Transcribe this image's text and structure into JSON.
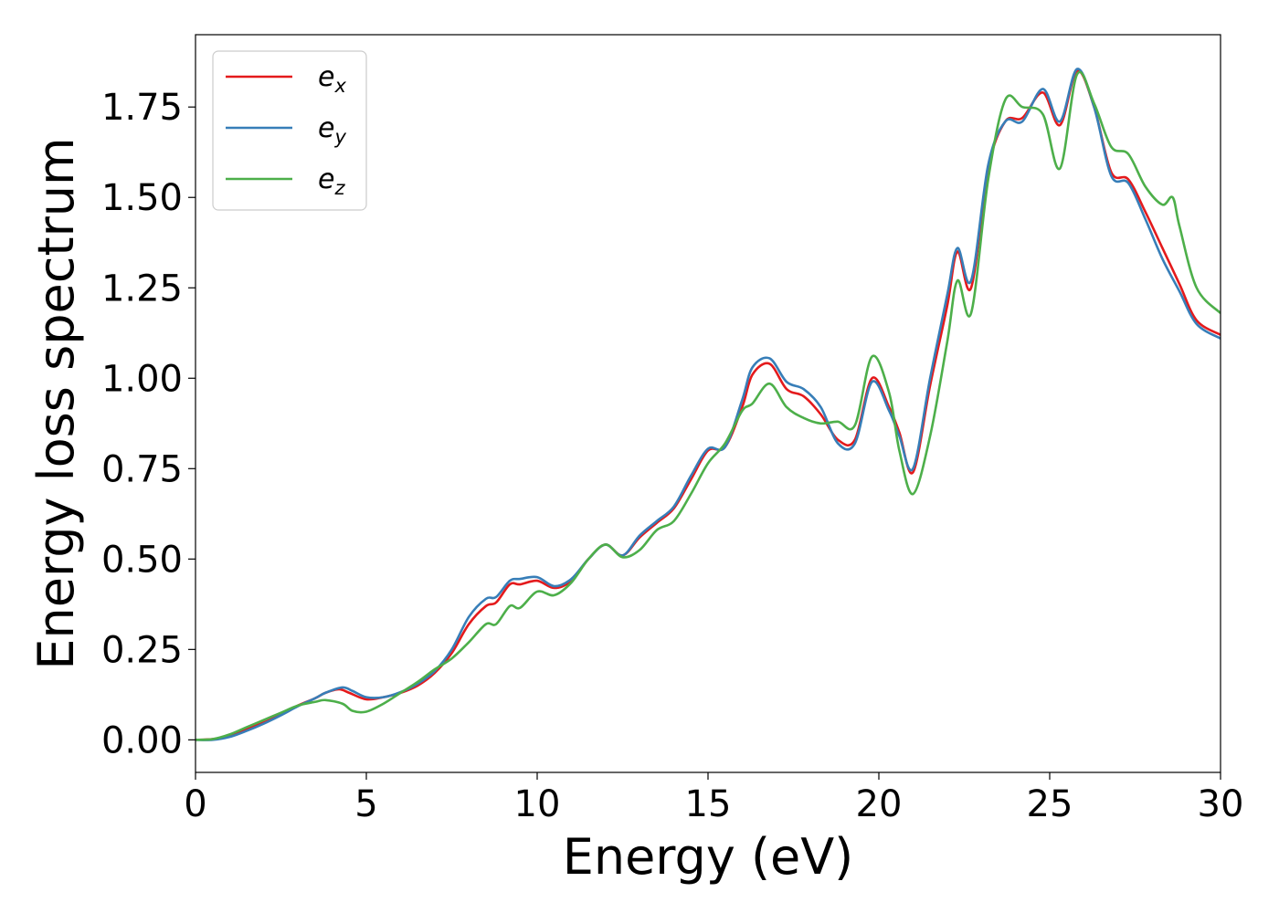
{
  "chart_data": {
    "type": "line",
    "title": "",
    "xlabel": "Energy (eV)",
    "ylabel": "Energy loss spectrum",
    "xlim": [
      0,
      30
    ],
    "ylim": [
      -0.09,
      1.95
    ],
    "xticks": [
      0,
      5,
      10,
      15,
      20,
      25,
      30
    ],
    "yticks": [
      0.0,
      0.25,
      0.5,
      0.75,
      1.0,
      1.25,
      1.5,
      1.75
    ],
    "xtick_labels": [
      "0",
      "5",
      "10",
      "15",
      "20",
      "25",
      "30"
    ],
    "ytick_labels": [
      "0.00",
      "0.25",
      "0.50",
      "0.75",
      "1.00",
      "1.25",
      "1.50",
      "1.75"
    ],
    "grid": false,
    "legend": "top-left",
    "series": [
      {
        "name": "e_x",
        "legend_base": "e",
        "legend_sub": "x",
        "color": "#e41a1c",
        "points": [
          [
            0,
            0
          ],
          [
            0.5,
            0.002
          ],
          [
            1,
            0.01
          ],
          [
            1.5,
            0.03
          ],
          [
            2,
            0.048
          ],
          [
            2.5,
            0.07
          ],
          [
            3,
            0.095
          ],
          [
            3.5,
            0.115
          ],
          [
            3.8,
            0.13
          ],
          [
            4.2,
            0.14
          ],
          [
            4.5,
            0.13
          ],
          [
            5,
            0.112
          ],
          [
            5.5,
            0.118
          ],
          [
            6,
            0.13
          ],
          [
            6.5,
            0.15
          ],
          [
            7,
            0.185
          ],
          [
            7.5,
            0.24
          ],
          [
            8,
            0.32
          ],
          [
            8.5,
            0.37
          ],
          [
            8.8,
            0.38
          ],
          [
            9.2,
            0.43
          ],
          [
            9.5,
            0.43
          ],
          [
            10,
            0.44
          ],
          [
            10.5,
            0.42
          ],
          [
            11,
            0.44
          ],
          [
            11.5,
            0.5
          ],
          [
            12,
            0.54
          ],
          [
            12.5,
            0.51
          ],
          [
            13,
            0.56
          ],
          [
            13.5,
            0.6
          ],
          [
            14,
            0.64
          ],
          [
            14.5,
            0.72
          ],
          [
            15,
            0.8
          ],
          [
            15.5,
            0.81
          ],
          [
            16,
            0.92
          ],
          [
            16.3,
            1.01
          ],
          [
            16.8,
            1.04
          ],
          [
            17.3,
            0.97
          ],
          [
            17.8,
            0.95
          ],
          [
            18.3,
            0.9
          ],
          [
            18.8,
            0.83
          ],
          [
            19.3,
            0.83
          ],
          [
            19.8,
            1.0
          ],
          [
            20.3,
            0.92
          ],
          [
            20.6,
            0.85
          ],
          [
            21,
            0.74
          ],
          [
            21.5,
            0.98
          ],
          [
            22,
            1.2
          ],
          [
            22.3,
            1.35
          ],
          [
            22.7,
            1.25
          ],
          [
            23.2,
            1.58
          ],
          [
            23.7,
            1.71
          ],
          [
            24.2,
            1.72
          ],
          [
            24.8,
            1.79
          ],
          [
            25.3,
            1.7
          ],
          [
            25.8,
            1.85
          ],
          [
            26.3,
            1.75
          ],
          [
            26.8,
            1.57
          ],
          [
            27.3,
            1.55
          ],
          [
            27.8,
            1.46
          ],
          [
            28.3,
            1.36
          ],
          [
            28.8,
            1.26
          ],
          [
            29.3,
            1.16
          ],
          [
            30,
            1.12
          ]
        ]
      },
      {
        "name": "e_y",
        "legend_base": "e",
        "legend_sub": "y",
        "color": "#377eb8",
        "points": [
          [
            0,
            0
          ],
          [
            0.5,
            0.0
          ],
          [
            1,
            0.008
          ],
          [
            1.5,
            0.025
          ],
          [
            2,
            0.045
          ],
          [
            2.5,
            0.068
          ],
          [
            3,
            0.093
          ],
          [
            3.5,
            0.115
          ],
          [
            3.8,
            0.13
          ],
          [
            4.3,
            0.145
          ],
          [
            4.6,
            0.135
          ],
          [
            5,
            0.118
          ],
          [
            5.5,
            0.118
          ],
          [
            6,
            0.132
          ],
          [
            6.5,
            0.155
          ],
          [
            7,
            0.19
          ],
          [
            7.5,
            0.25
          ],
          [
            8,
            0.34
          ],
          [
            8.5,
            0.39
          ],
          [
            8.8,
            0.395
          ],
          [
            9.2,
            0.44
          ],
          [
            9.5,
            0.445
          ],
          [
            10,
            0.45
          ],
          [
            10.5,
            0.425
          ],
          [
            11,
            0.445
          ],
          [
            11.5,
            0.5
          ],
          [
            12,
            0.54
          ],
          [
            12.5,
            0.51
          ],
          [
            13,
            0.565
          ],
          [
            13.5,
            0.605
          ],
          [
            14,
            0.645
          ],
          [
            14.5,
            0.73
          ],
          [
            15,
            0.805
          ],
          [
            15.5,
            0.81
          ],
          [
            16,
            0.94
          ],
          [
            16.3,
            1.03
          ],
          [
            16.8,
            1.055
          ],
          [
            17.3,
            0.99
          ],
          [
            17.8,
            0.97
          ],
          [
            18.3,
            0.92
          ],
          [
            18.8,
            0.82
          ],
          [
            19.3,
            0.82
          ],
          [
            19.8,
            0.99
          ],
          [
            20.3,
            0.91
          ],
          [
            20.6,
            0.84
          ],
          [
            21,
            0.75
          ],
          [
            21.5,
            1.0
          ],
          [
            22,
            1.23
          ],
          [
            22.3,
            1.36
          ],
          [
            22.7,
            1.27
          ],
          [
            23.2,
            1.59
          ],
          [
            23.7,
            1.71
          ],
          [
            24.2,
            1.71
          ],
          [
            24.8,
            1.8
          ],
          [
            25.3,
            1.71
          ],
          [
            25.8,
            1.855
          ],
          [
            26.3,
            1.75
          ],
          [
            26.8,
            1.56
          ],
          [
            27.3,
            1.54
          ],
          [
            27.8,
            1.44
          ],
          [
            28.3,
            1.33
          ],
          [
            28.8,
            1.24
          ],
          [
            29.3,
            1.15
          ],
          [
            30,
            1.11
          ]
        ]
      },
      {
        "name": "e_z",
        "legend_base": "e",
        "legend_sub": "z",
        "color": "#4daf4a",
        "points": [
          [
            0,
            0
          ],
          [
            0.5,
            0.002
          ],
          [
            1,
            0.015
          ],
          [
            1.5,
            0.035
          ],
          [
            2,
            0.055
          ],
          [
            2.5,
            0.075
          ],
          [
            3,
            0.095
          ],
          [
            3.5,
            0.105
          ],
          [
            3.8,
            0.11
          ],
          [
            4.3,
            0.1
          ],
          [
            4.6,
            0.08
          ],
          [
            5,
            0.078
          ],
          [
            5.5,
            0.1
          ],
          [
            6,
            0.13
          ],
          [
            6.5,
            0.16
          ],
          [
            7,
            0.195
          ],
          [
            7.5,
            0.225
          ],
          [
            8,
            0.27
          ],
          [
            8.5,
            0.32
          ],
          [
            8.8,
            0.32
          ],
          [
            9.2,
            0.37
          ],
          [
            9.5,
            0.365
          ],
          [
            10,
            0.41
          ],
          [
            10.5,
            0.4
          ],
          [
            11,
            0.435
          ],
          [
            11.5,
            0.5
          ],
          [
            12,
            0.54
          ],
          [
            12.5,
            0.505
          ],
          [
            13,
            0.525
          ],
          [
            13.5,
            0.58
          ],
          [
            14,
            0.605
          ],
          [
            14.5,
            0.68
          ],
          [
            15,
            0.765
          ],
          [
            15.5,
            0.82
          ],
          [
            16,
            0.91
          ],
          [
            16.3,
            0.93
          ],
          [
            16.8,
            0.985
          ],
          [
            17.3,
            0.92
          ],
          [
            17.8,
            0.89
          ],
          [
            18.3,
            0.875
          ],
          [
            18.8,
            0.88
          ],
          [
            19.3,
            0.87
          ],
          [
            19.8,
            1.06
          ],
          [
            20.3,
            0.96
          ],
          [
            20.6,
            0.8
          ],
          [
            21,
            0.68
          ],
          [
            21.5,
            0.84
          ],
          [
            22,
            1.1
          ],
          [
            22.3,
            1.27
          ],
          [
            22.7,
            1.18
          ],
          [
            23.2,
            1.55
          ],
          [
            23.7,
            1.77
          ],
          [
            24.2,
            1.75
          ],
          [
            24.8,
            1.73
          ],
          [
            25.3,
            1.58
          ],
          [
            25.8,
            1.84
          ],
          [
            26.3,
            1.76
          ],
          [
            26.8,
            1.64
          ],
          [
            27.3,
            1.62
          ],
          [
            27.8,
            1.53
          ],
          [
            28.3,
            1.48
          ],
          [
            28.6,
            1.5
          ],
          [
            28.8,
            1.42
          ],
          [
            29.3,
            1.25
          ],
          [
            30,
            1.18
          ]
        ]
      }
    ]
  }
}
